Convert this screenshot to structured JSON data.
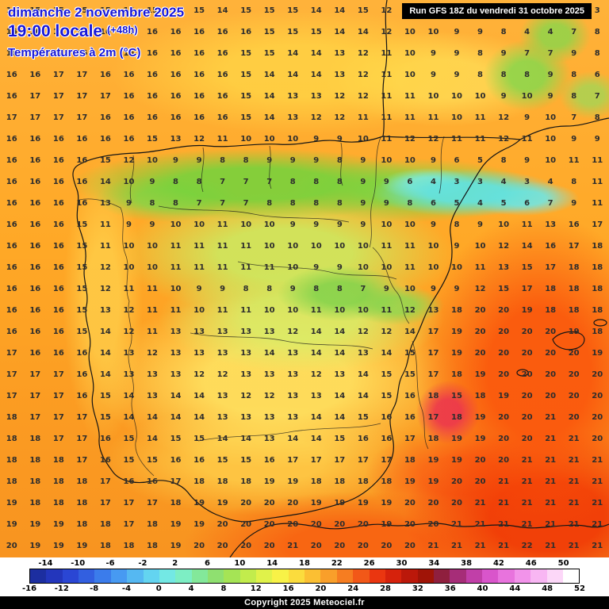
{
  "header": {
    "date_line": "dimanche 2 novembre 2025",
    "time_line": "19:00 locale",
    "time_offset": "(+48h)",
    "subtitle": "Températures à 2m (°C)",
    "run_info": "Run GFS 18Z du vendredi 31 octobre 2025"
  },
  "footer": {
    "copyright": "Copyright 2025 Meteociel.fr"
  },
  "colors": {
    "title_blue": "#1717d8",
    "base_orange": "#ffa826",
    "number_color": "#2d2d2d"
  },
  "chart_data": {
    "type": "heatmap",
    "title": "Températures à 2m (°C)",
    "model_run": "Run GFS 18Z du vendredi 31 octobre 2025",
    "valid_time": "dimanche 2 novembre 2025 19:00 locale (+48h)",
    "unit": "°C",
    "region": "Iberian Peninsula",
    "grid_rows": [
      "16 15 15 15 15 15 15 15 15 14 15 15 15 14 14 15 12 12 11 10 10 9 8 9 4 3",
      "16 16 16 16 16 16 16 16 16 16 16 15 15 15 14 14 12 10 10 9 9 8 4 4 7 8",
      "16 16 16 16 16 16 16 16 16 16 15 15 14 14 13 12 11 10 9 9 8 9 7 7 9 8",
      "16 16 17 17 16 16 16 16 16 16 15 14 14 14 13 12 11 10 9 9 8 8 8 9 8 6",
      "16 17 17 17 17 16 16 16 16 16 15 14 13 13 12 12 11 11 10 10 10 9 10 9 8 7",
      "17 17 17 17 16 16 16 16 16 16 15 14 13 12 12 11 11 11 11 10 11 12 9 10 7 8",
      "16 16 16 16 16 16 15 13 12 11 10 10 10 9 9 10 11 12 12 11 11 12 11 10 9 9",
      "16 16 16 16 15 12 10 9 9 8 8 9 9 9 8 9 10 10 9 6 5 8 9 10 11 11",
      "16 16 16 16 14 10 9 8 8 7 7 7 8 8 8 9 9 6 4 3 3 4 3 4 8 11",
      "16 16 16 16 13 9 8 8 7 7 7 8 8 8 8 9 9 8 6 5 4 5 6 7 9 11",
      "16 16 16 15 11 9 9 10 10 11 10 10 9 9 9 9 10 10 9 8 9 10 11 13 16 17",
      "16 16 16 15 11 10 10 11 11 11 11 10 10 10 10 10 11 11 10 9 10 12 14 16 17 18",
      "16 16 16 15 12 10 10 11 11 11 11 11 10 9 9 10 10 11 10 10 11 13 15 17 18 18",
      "16 16 16 15 12 11 11 10 9 9 8 8 9 8 8 7 9 10 9 9 12 15 17 18 18 18",
      "16 16 16 15 13 12 11 11 10 11 11 10 10 11 10 10 11 12 13 18 20 20 19 18 18 18",
      "16 16 16 15 14 12 11 13 13 13 13 13 12 14 14 12 12 14 17 19 20 20 20 20 19 18",
      "17 16 16 16 14 13 12 13 13 13 13 14 13 14 14 13 14 15 17 19 20 20 20 20 20 19",
      "17 17 17 16 14 13 13 13 12 12 13 13 13 12 13 14 15 15 17 18 19 20 20 20 20 20",
      "17 17 17 16 15 14 13 14 14 13 12 12 13 13 14 14 15 16 18 15 18 19 20 20 20 20",
      "18 17 17 17 15 14 14 14 14 13 13 13 13 14 14 15 16 16 17 18 19 20 20 21 20 20",
      "18 18 17 17 16 15 14 15 15 14 14 13 14 14 15 16 16 17 18 19 19 20 20 21 21 20",
      "18 18 18 17 16 15 15 16 16 15 15 16 17 17 17 17 17 18 19 19 20 20 21 21 21 21",
      "18 18 18 18 17 16 16 17 18 18 18 19 19 18 18 18 18 19 19 20 20 21 21 21 21 21",
      "19 18 18 18 17 17 17 18 19 19 20 20 20 19 19 19 19 20 20 20 21 21 21 21 21 21",
      "19 19 19 18 18 17 18 19 19 20 20 20 20 20 20 20 19 20 20 21 21 21 21 21 21 21",
      "20 19 19 19 18 18 18 19 20 20 20 20 21 20 20 20 20 20 21 21 21 21 22 21 21 21"
    ],
    "scale": {
      "min": -16,
      "max": 52,
      "top_labels": [
        -14,
        -10,
        -6,
        -2,
        2,
        6,
        10,
        14,
        18,
        22,
        26,
        30,
        34,
        38,
        42,
        46,
        50
      ],
      "bottom_labels": [
        -16,
        -12,
        -8,
        -4,
        0,
        4,
        8,
        12,
        16,
        20,
        24,
        28,
        32,
        36,
        40,
        44,
        48,
        52
      ],
      "colors": [
        "#1c2ea0",
        "#2336bc",
        "#2a46d4",
        "#325fe0",
        "#3b7ceb",
        "#479af2",
        "#55b8f2",
        "#63d4f0",
        "#73e8e4",
        "#7deec4",
        "#83e89a",
        "#8fe070",
        "#a5e455",
        "#c2ec4c",
        "#e0f24a",
        "#f8f247",
        "#fbdc3d",
        "#fbbf33",
        "#f99f2a",
        "#f67d21",
        "#f25818",
        "#ea3610",
        "#d6220c",
        "#bb180a",
        "#a01407",
        "#8f1f3e",
        "#a62d78",
        "#c13fa8",
        "#d955cb",
        "#e873dd",
        "#f293ea",
        "#f8b6f3",
        "#fcd7f8",
        "#ffffff"
      ]
    }
  }
}
